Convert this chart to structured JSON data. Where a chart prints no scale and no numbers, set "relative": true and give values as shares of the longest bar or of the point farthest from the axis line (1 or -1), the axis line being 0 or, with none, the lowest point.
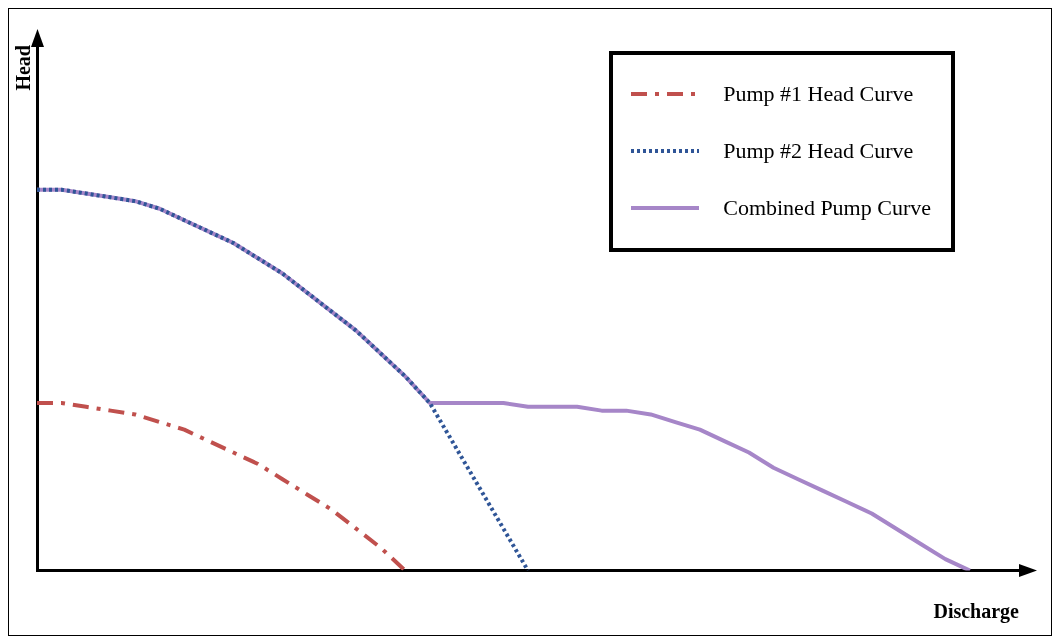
{
  "chart_data": {
    "type": "line",
    "relative": true,
    "xlabel": "Discharge",
    "ylabel": "Head",
    "grid": false,
    "legend": "top right",
    "marker": "none",
    "categories": [
      null,
      null,
      null,
      null,
      null,
      null,
      null,
      null,
      null,
      null,
      null,
      null,
      null,
      null,
      null,
      null,
      null,
      null,
      null,
      null,
      null,
      null,
      null,
      null,
      null,
      null,
      null,
      null,
      null,
      null,
      null,
      null,
      null,
      null,
      null,
      null,
      null,
      null,
      null,
      null,
      null
    ],
    "series": [
      {
        "name": "Pump #1 Head Curve",
        "color": "#c0504d",
        "line_style": "dashed",
        "values": [
          0.44,
          0.44,
          0.43,
          0.42,
          0.41,
          0.39,
          0.37,
          0.34,
          0.31,
          0.28,
          0.24,
          0.2,
          0.16,
          0.11,
          0.06,
          0,
          null,
          null,
          null,
          null,
          null,
          null,
          null,
          null,
          null,
          null,
          null,
          null,
          null,
          null,
          null,
          null,
          null,
          null,
          null,
          null,
          null,
          null,
          null,
          null,
          null
        ]
      },
      {
        "name": "Pump #2 Head Curve",
        "color": "#2f5597",
        "line_style": "dotted",
        "values": [
          1,
          1,
          0.99,
          0.98,
          0.97,
          0.95,
          0.92,
          0.89,
          0.86,
          0.82,
          0.78,
          0.73,
          0.68,
          0.63,
          0.57,
          0.51,
          0.44,
          0.33,
          0.22,
          0.11,
          0,
          null,
          null,
          null,
          null,
          null,
          null,
          null,
          null,
          null,
          null,
          null,
          null,
          null,
          null,
          null,
          null,
          null,
          null,
          null,
          null
        ]
      },
      {
        "name": "Combined Pump Curve",
        "color": "#a686c8",
        "line_style": "solid",
        "values": [
          1,
          1,
          0.99,
          0.98,
          0.97,
          0.95,
          0.92,
          0.89,
          0.86,
          0.82,
          0.78,
          0.73,
          0.68,
          0.63,
          0.57,
          0.51,
          0.44,
          0.44,
          0.44,
          0.44,
          0.43,
          0.43,
          0.43,
          0.42,
          0.42,
          0.41,
          0.39,
          0.37,
          0.34,
          0.31,
          0.27,
          0.24,
          0.21,
          0.18,
          0.15,
          0.11,
          0.07,
          0.03,
          0,
          null,
          null
        ]
      }
    ]
  }
}
